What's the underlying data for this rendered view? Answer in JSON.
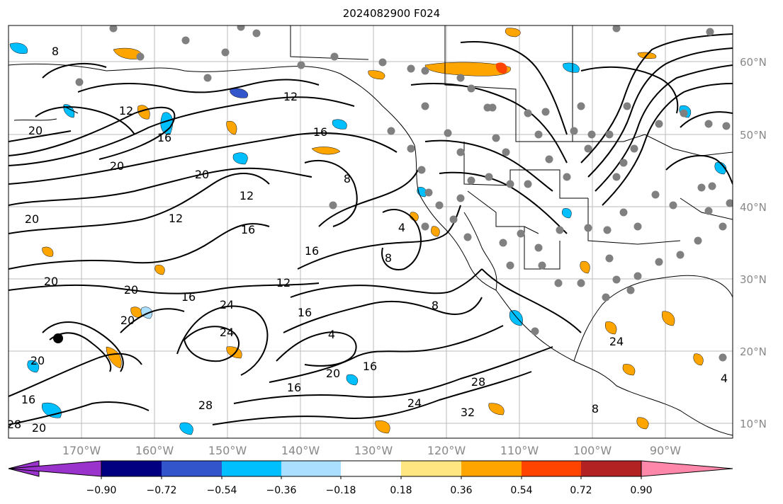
{
  "title": "2024082900 F024",
  "lat_labels": [
    "60°N",
    "50°N",
    "40°N",
    "30°N",
    "20°N",
    "10°N"
  ],
  "lon_labels": [
    "170°W",
    "160°W",
    "150°W",
    "140°W",
    "130°W",
    "120°W",
    "110°W",
    "100°W",
    "90°W"
  ],
  "contour_labels": [
    "8",
    "12",
    "12",
    "16",
    "16",
    "20",
    "20",
    "20",
    "20",
    "12",
    "16",
    "16",
    "12",
    "16",
    "20",
    "20",
    "24",
    "20",
    "20",
    "16",
    "16",
    "24",
    "28",
    "28",
    "32",
    "24",
    "20",
    "8",
    "4",
    "8",
    "4",
    "8",
    "16",
    "24",
    "4",
    "20",
    "16",
    "8",
    "28",
    "12"
  ],
  "colorbar": {
    "colors": [
      "#9933cc",
      "#000080",
      "#3355cc",
      "#00bfff",
      "#aadfff",
      "#ffffff",
      "#ffe680",
      "#ffa500",
      "#ff4400",
      "#b22222",
      "#ff88aa"
    ],
    "ticks": [
      "−0.90",
      "−0.72",
      "−0.54",
      "−0.36",
      "−0.18",
      "0.18",
      "0.36",
      "0.54",
      "0.72",
      "0.90"
    ]
  },
  "colors": {
    "contour": "#000000",
    "coast": "#000000",
    "grid": "#bbbbbb",
    "station": "#808080",
    "pos": "#ffa500",
    "pos_light": "#ffe680",
    "neg": "#00bfff",
    "neg_light": "#aadfff"
  }
}
